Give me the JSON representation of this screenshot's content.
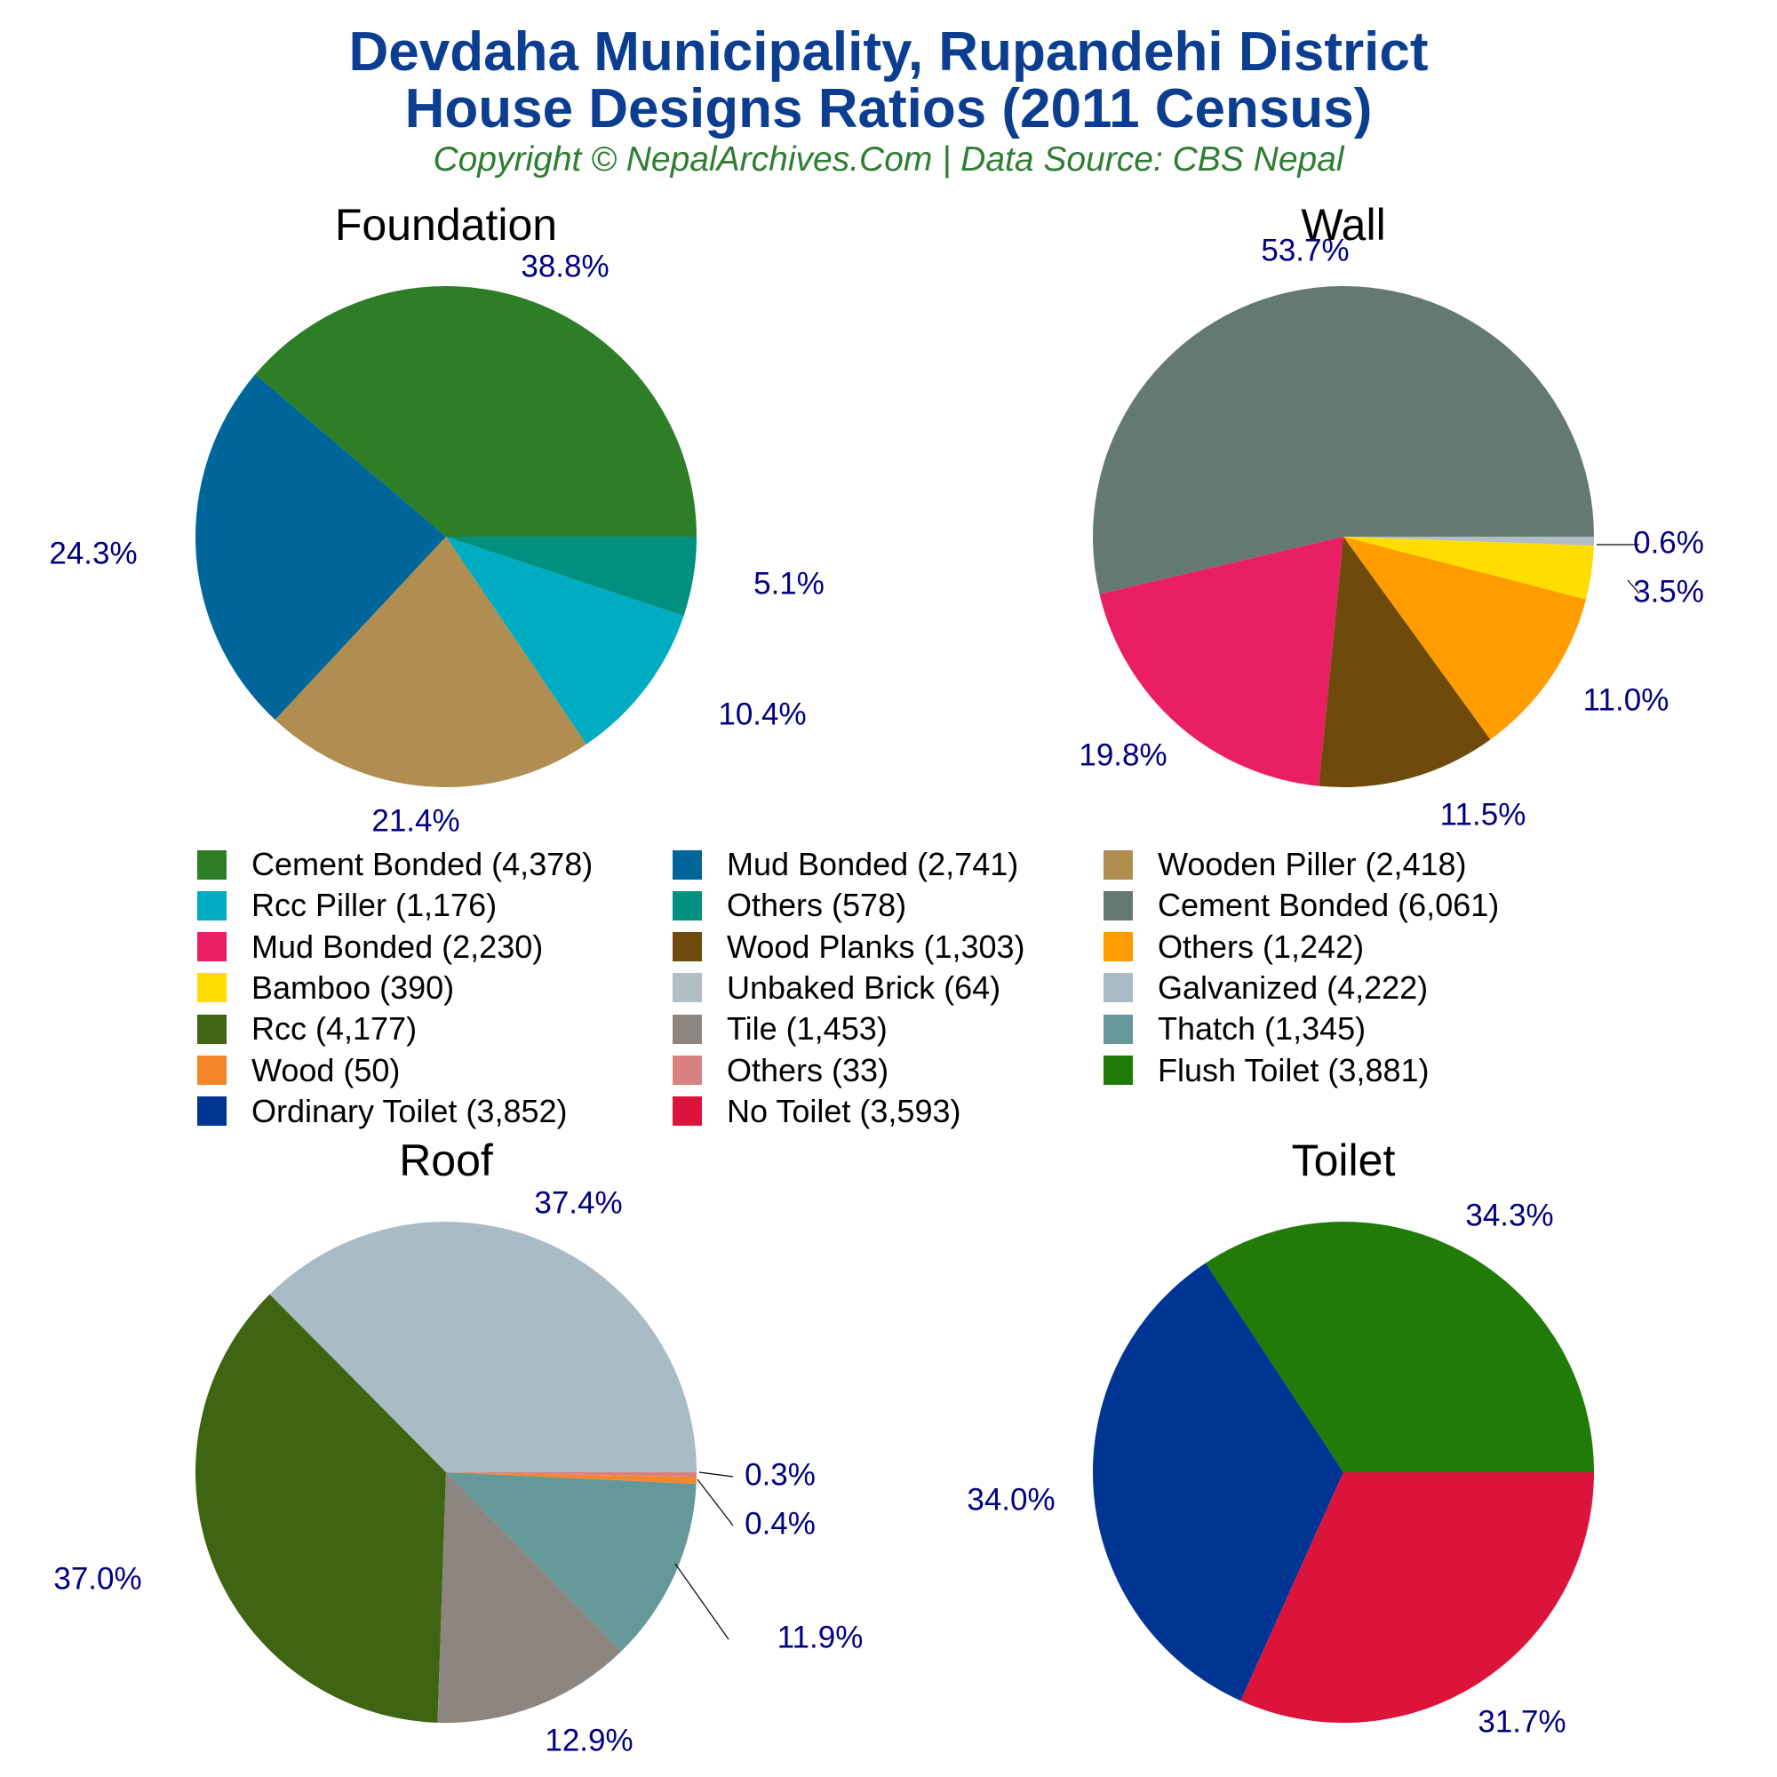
{
  "title_line1": "Devdaha Municipality, Rupandehi District",
  "title_line2": "House Designs Ratios (2011 Census)",
  "subtitle": "Copyright © NepalArchives.Com | Data Source: CBS Nepal",
  "colors": {
    "title": "#0b3d91",
    "subtitle": "#2e7d32",
    "pct_label": "#000080"
  },
  "chart_data": [
    {
      "type": "pie",
      "title": "Foundation",
      "slices": [
        {
          "label": "Cement Bonded",
          "value": 4378,
          "pct": "38.8%",
          "color": "#2e7d27"
        },
        {
          "label": "Mud Bonded",
          "value": 2741,
          "pct": "24.3%",
          "color": "#006699"
        },
        {
          "label": "Wooden Piller",
          "value": 2418,
          "pct": "21.4%",
          "color": "#b08d50"
        },
        {
          "label": "Rcc Piller",
          "value": 1176,
          "pct": "10.4%",
          "color": "#00acc1"
        },
        {
          "label": "Others",
          "value": 578,
          "pct": "5.1%",
          "color": "#009080"
        }
      ]
    },
    {
      "type": "pie",
      "title": "Wall",
      "slices": [
        {
          "label": "Cement Bonded",
          "value": 6061,
          "pct": "53.7%",
          "color": "#647a70"
        },
        {
          "label": "Mud Bonded",
          "value": 2230,
          "pct": "19.8%",
          "color": "#e91e63"
        },
        {
          "label": "Wood Planks",
          "value": 1303,
          "pct": "11.5%",
          "color": "#6e4a0c"
        },
        {
          "label": "Others",
          "value": 1242,
          "pct": "11.0%",
          "color": "#ff9c00"
        },
        {
          "label": "Bamboo",
          "value": 390,
          "pct": "3.5%",
          "color": "#ffdd00"
        },
        {
          "label": "Unbaked Brick",
          "value": 64,
          "pct": "0.6%",
          "color": "#b0bec5"
        }
      ]
    },
    {
      "type": "pie",
      "title": "Roof",
      "slices": [
        {
          "label": "Galvanized",
          "value": 4222,
          "pct": "37.4%",
          "color": "#a9bcc5"
        },
        {
          "label": "Rcc",
          "value": 4177,
          "pct": "37.0%",
          "color": "#3f6512"
        },
        {
          "label": "Tile",
          "value": 1453,
          "pct": "12.9%",
          "color": "#8c8580"
        },
        {
          "label": "Thatch",
          "value": 1345,
          "pct": "11.9%",
          "color": "#659999"
        },
        {
          "label": "Wood",
          "value": 50,
          "pct": "0.4%",
          "color": "#f5862a"
        },
        {
          "label": "Others",
          "value": 33,
          "pct": "0.3%",
          "color": "#d98080"
        }
      ]
    },
    {
      "type": "pie",
      "title": "Toilet",
      "slices": [
        {
          "label": "Flush Toilet",
          "value": 3881,
          "pct": "34.3%",
          "color": "#207b08"
        },
        {
          "label": "Ordinary Toilet",
          "value": 3852,
          "pct": "34.0%",
          "color": "#003594"
        },
        {
          "label": "No Toilet",
          "value": 3593,
          "pct": "31.7%",
          "color": "#dc143c"
        }
      ]
    }
  ],
  "legend": [
    {
      "label": "Cement Bonded (4,378)",
      "color": "#2e7d27"
    },
    {
      "label": "Mud Bonded (2,741)",
      "color": "#006699"
    },
    {
      "label": "Wooden Piller (2,418)",
      "color": "#b08d50"
    },
    {
      "label": "Rcc Piller (1,176)",
      "color": "#00acc1"
    },
    {
      "label": "Others (578)",
      "color": "#009080"
    },
    {
      "label": "Cement Bonded (6,061)",
      "color": "#647a70"
    },
    {
      "label": "Mud Bonded (2,230)",
      "color": "#e91e63"
    },
    {
      "label": "Wood Planks (1,303)",
      "color": "#6e4a0c"
    },
    {
      "label": "Others (1,242)",
      "color": "#ff9c00"
    },
    {
      "label": "Bamboo (390)",
      "color": "#ffdd00"
    },
    {
      "label": "Unbaked Brick (64)",
      "color": "#b0bec5"
    },
    {
      "label": "Galvanized (4,222)",
      "color": "#a9bcc5"
    },
    {
      "label": "Rcc (4,177)",
      "color": "#3f6512"
    },
    {
      "label": "Tile (1,453)",
      "color": "#8c8580"
    },
    {
      "label": "Thatch (1,345)",
      "color": "#659999"
    },
    {
      "label": "Wood (50)",
      "color": "#f5862a"
    },
    {
      "label": "Others (33)",
      "color": "#d98080"
    },
    {
      "label": "Flush Toilet (3,881)",
      "color": "#207b08"
    },
    {
      "label": "Ordinary Toilet (3,852)",
      "color": "#003594"
    },
    {
      "label": "No Toilet (3,593)",
      "color": "#dc143c"
    }
  ]
}
